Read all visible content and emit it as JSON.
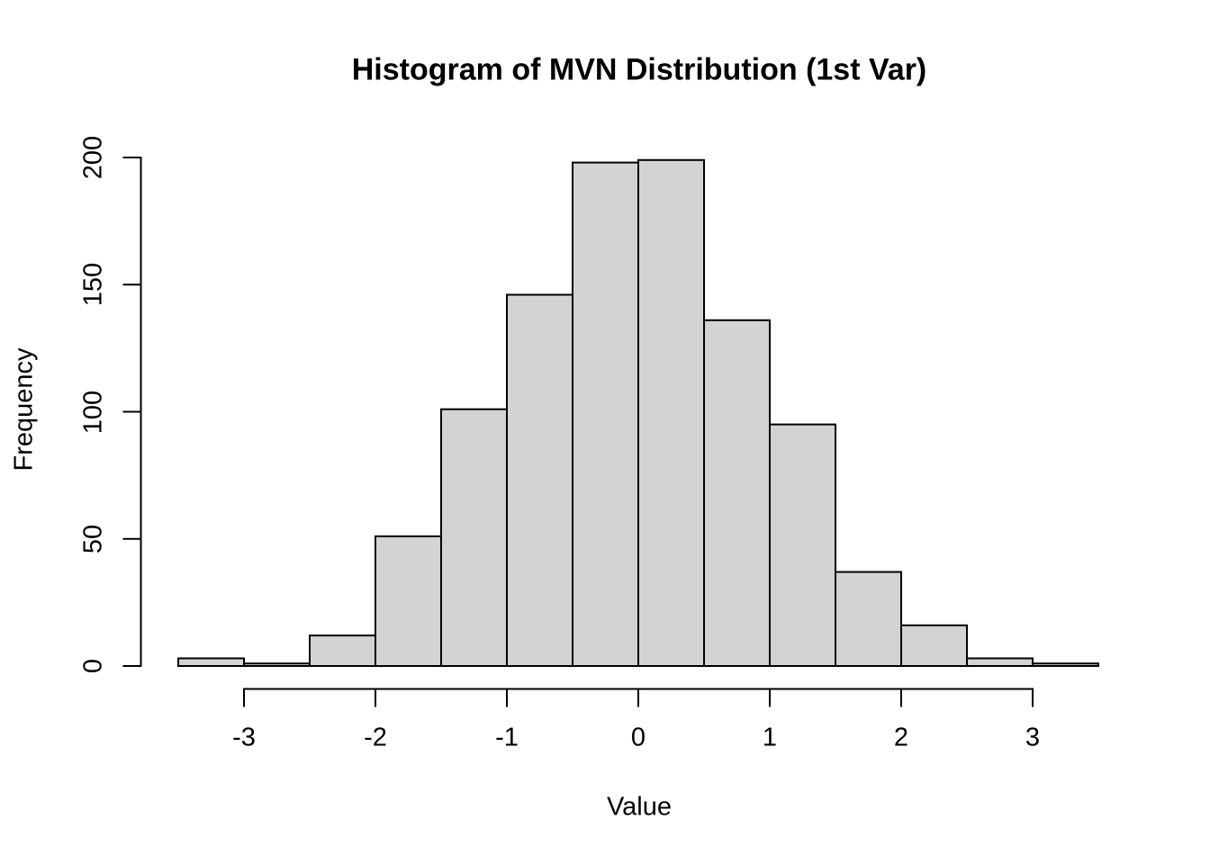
{
  "title": "Histogram of MVN Distribution (1st Var)",
  "x_axis": {
    "label": "Value",
    "tick_labels": [
      "-3",
      "-2",
      "-1",
      "0",
      "1",
      "2",
      "3"
    ],
    "tick_values": [
      -3,
      -2,
      -1,
      0,
      1,
      2,
      3
    ]
  },
  "y_axis": {
    "label": "Frequency",
    "tick_labels": [
      "0",
      "50",
      "100",
      "150",
      "200"
    ],
    "tick_values": [
      0,
      50,
      100,
      150,
      200
    ]
  },
  "colors": {
    "bar_fill": "#d3d3d3",
    "bar_stroke": "#000000",
    "axis_color": "#000000",
    "background": "#ffffff",
    "text": "#000000"
  },
  "chart_data": {
    "type": "bar",
    "subtype": "histogram",
    "title": "Histogram of MVN Distribution (1st Var)",
    "xlabel": "Value",
    "ylabel": "Frequency",
    "bin_edges": [
      -3.5,
      -3.0,
      -2.5,
      -2.0,
      -1.5,
      -1.0,
      -0.5,
      0.0,
      0.5,
      1.0,
      1.5,
      2.0,
      2.5,
      3.0,
      3.5
    ],
    "counts": [
      3,
      1,
      12,
      51,
      101,
      146,
      198,
      199,
      136,
      95,
      37,
      16,
      3,
      1
    ],
    "xlim": [
      -3.5,
      3.5
    ],
    "ylim": [
      0,
      200
    ],
    "x_ticks": [
      -3,
      -2,
      -1,
      0,
      1,
      2,
      3
    ],
    "y_ticks": [
      0,
      50,
      100,
      150,
      200
    ],
    "grid": false,
    "legend": null
  }
}
